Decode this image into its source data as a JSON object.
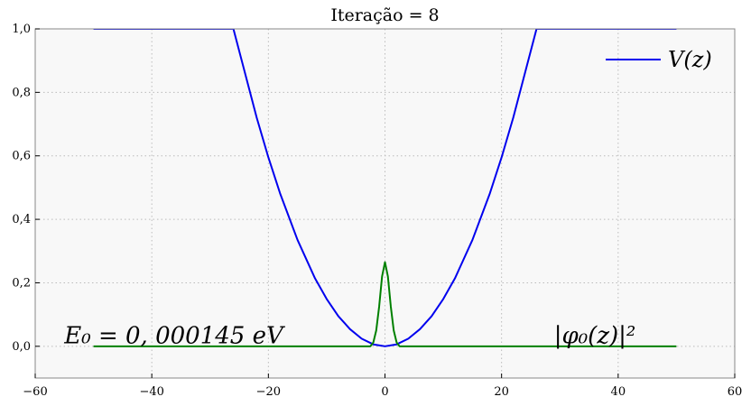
{
  "chart_data": {
    "type": "line",
    "title": "Iteração = 8",
    "xlabel": "",
    "ylabel": "",
    "xlim": [
      -60,
      60
    ],
    "ylim": [
      -0.1,
      1.0
    ],
    "xticks": [
      -60,
      -40,
      -20,
      0,
      20,
      40,
      60
    ],
    "xtick_labels": [
      "−60",
      "−40",
      "−20",
      "0",
      "20",
      "40",
      "60"
    ],
    "yticks": [
      0.0,
      0.2,
      0.4,
      0.6,
      0.8,
      1.0
    ],
    "ytick_labels": [
      "0,0",
      "0,2",
      "0,4",
      "0,6",
      "0,8",
      "1,0"
    ],
    "grid": true,
    "legend_position": "top-right",
    "background": "#f8f8f8",
    "series": [
      {
        "name": "V(z)",
        "color": "#0000ee",
        "x": [
          -50,
          -26,
          -25,
          -22,
          -20,
          -18,
          -15,
          -12,
          -10,
          -8,
          -6,
          -4,
          -2,
          0,
          2,
          4,
          6,
          8,
          10,
          12,
          15,
          18,
          20,
          22,
          25,
          26,
          50
        ],
        "y": [
          1.0,
          1.0,
          0.93,
          0.72,
          0.595,
          0.482,
          0.335,
          0.214,
          0.149,
          0.095,
          0.054,
          0.024,
          0.006,
          0.0,
          0.006,
          0.024,
          0.054,
          0.095,
          0.149,
          0.214,
          0.335,
          0.482,
          0.595,
          0.72,
          0.93,
          1.0,
          1.0
        ]
      },
      {
        "color": "#008000",
        "x": [
          -50,
          -2.5,
          -2.0,
          -1.5,
          -1.0,
          -0.5,
          0.0,
          0.5,
          1.0,
          1.5,
          2.0,
          2.5,
          50
        ],
        "y": [
          0.0,
          0.0,
          0.012,
          0.05,
          0.125,
          0.22,
          0.265,
          0.22,
          0.125,
          0.05,
          0.012,
          0.0,
          0.0
        ]
      }
    ],
    "annotations": [
      {
        "text": "E₀ = 0, 000145 eV",
        "x": -55,
        "y": 0.03
      },
      {
        "text": "|φ₀(z)|²",
        "x": 29,
        "y": 0.03
      }
    ]
  }
}
